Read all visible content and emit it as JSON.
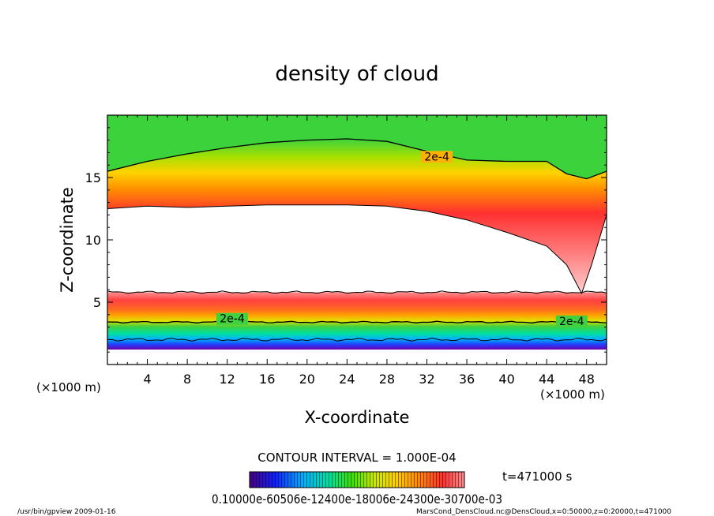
{
  "chart_data": {
    "type": "heatmap",
    "title": "density of cloud",
    "xlabel": "X-coordinate",
    "ylabel": "Z-coordinate",
    "x_unit_left": "(×1000 m)",
    "x_unit_right": "(×1000 m)",
    "xlim": [
      0,
      50
    ],
    "ylim": [
      0,
      20
    ],
    "xticks": [
      4,
      8,
      12,
      16,
      20,
      24,
      28,
      32,
      36,
      40,
      44,
      48
    ],
    "yticks": [
      5,
      10,
      15
    ],
    "contour_labels": [
      {
        "text": "2e-4",
        "x": 33,
        "z": 16.5
      },
      {
        "text": "2e-4",
        "x": 12.5,
        "z": 3.5
      },
      {
        "text": "2e-4",
        "x": 46.5,
        "z": 3.3
      }
    ],
    "contour_interval_text": "CONTOUR INTERVAL = 1.000E-04",
    "time_text": "t=471000 s",
    "colorbar_labels_text": "0.10000e-60506e-12400e-18006e-24300e-30700e-03",
    "colorbar_colors": [
      "#4b0082",
      "#0000ff",
      "#00bfff",
      "#00e5a0",
      "#40e000",
      "#c8e800",
      "#ffd700",
      "#ff8c00",
      "#ff4040",
      "#ff8080"
    ],
    "upper_layer": {
      "outer_contour_x": [
        0,
        4,
        8,
        12,
        16,
        20,
        24,
        28,
        32,
        36,
        40,
        44,
        46,
        48,
        50
      ],
      "outer_contour_z": [
        15.5,
        16.3,
        16.9,
        17.4,
        17.8,
        18.0,
        18.1,
        17.9,
        17.1,
        16.4,
        16.3,
        16.3,
        15.3,
        14.9,
        15.5
      ],
      "inner_contour_x": [
        0,
        4,
        8,
        12,
        16,
        20,
        24,
        28,
        32,
        36,
        40,
        44,
        46,
        47.5,
        48.5,
        50
      ],
      "inner_contour_z": [
        12.5,
        12.7,
        12.6,
        12.7,
        12.8,
        12.8,
        12.8,
        12.7,
        12.3,
        11.6,
        10.6,
        9.5,
        8.0,
        5.7,
        8.0,
        12.0
      ]
    },
    "lower_layer": {
      "top_z": 5.8,
      "contour_z": 3.4,
      "bottom_z": 1.2
    }
  },
  "footer": {
    "left": "/usr/bin/gpview  2009-01-16",
    "right": "MarsCond_DensCloud.nc@DensCloud,x=0:50000,z=0:20000,t=471000"
  }
}
